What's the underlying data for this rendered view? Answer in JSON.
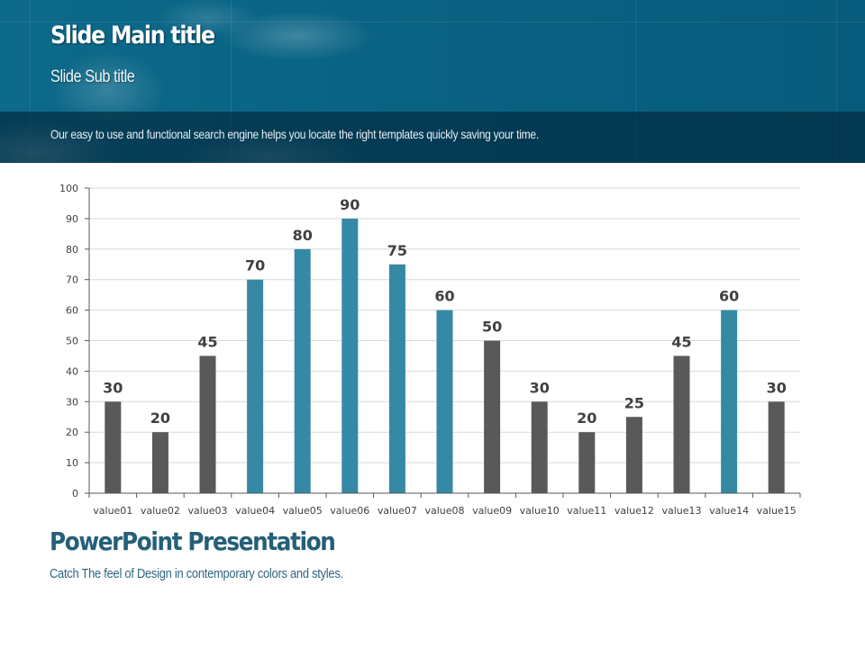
{
  "header": {
    "main_title": "Slide Main title",
    "sub_title": "Slide Sub title",
    "strip_text": "Our easy to use and functional search engine helps you locate the right templates quickly saving your time."
  },
  "footer": {
    "title": "PowerPoint Presentation",
    "subtitle": "Catch The feel of Design in contemporary colors and styles."
  },
  "colors": {
    "header_blue": "#0a6384",
    "highlight_bar": "#3589a4",
    "default_bar": "#595959",
    "data_label": "#404040",
    "footer_title": "#255f78"
  },
  "chart_data": {
    "type": "bar",
    "title": "",
    "xlabel": "",
    "ylabel": "",
    "ylim": [
      0,
      100
    ],
    "yticks": [
      0,
      10,
      20,
      30,
      40,
      50,
      60,
      70,
      80,
      90,
      100
    ],
    "grid": true,
    "legend": "none",
    "categories": [
      "value01",
      "value02",
      "value03",
      "value04",
      "value05",
      "value06",
      "value07",
      "value08",
      "value09",
      "value10",
      "value11",
      "value12",
      "value13",
      "value14",
      "value15"
    ],
    "values": [
      30,
      20,
      45,
      70,
      80,
      90,
      75,
      60,
      50,
      30,
      20,
      25,
      45,
      60,
      30
    ],
    "highlighted": [
      false,
      false,
      false,
      true,
      true,
      true,
      true,
      true,
      false,
      false,
      false,
      false,
      false,
      true,
      false
    ],
    "data_labels": [
      "30",
      "20",
      "45",
      "70",
      "80",
      "90",
      "75",
      "60",
      "50",
      "30",
      "20",
      "25",
      "45",
      "60",
      "30"
    ]
  }
}
